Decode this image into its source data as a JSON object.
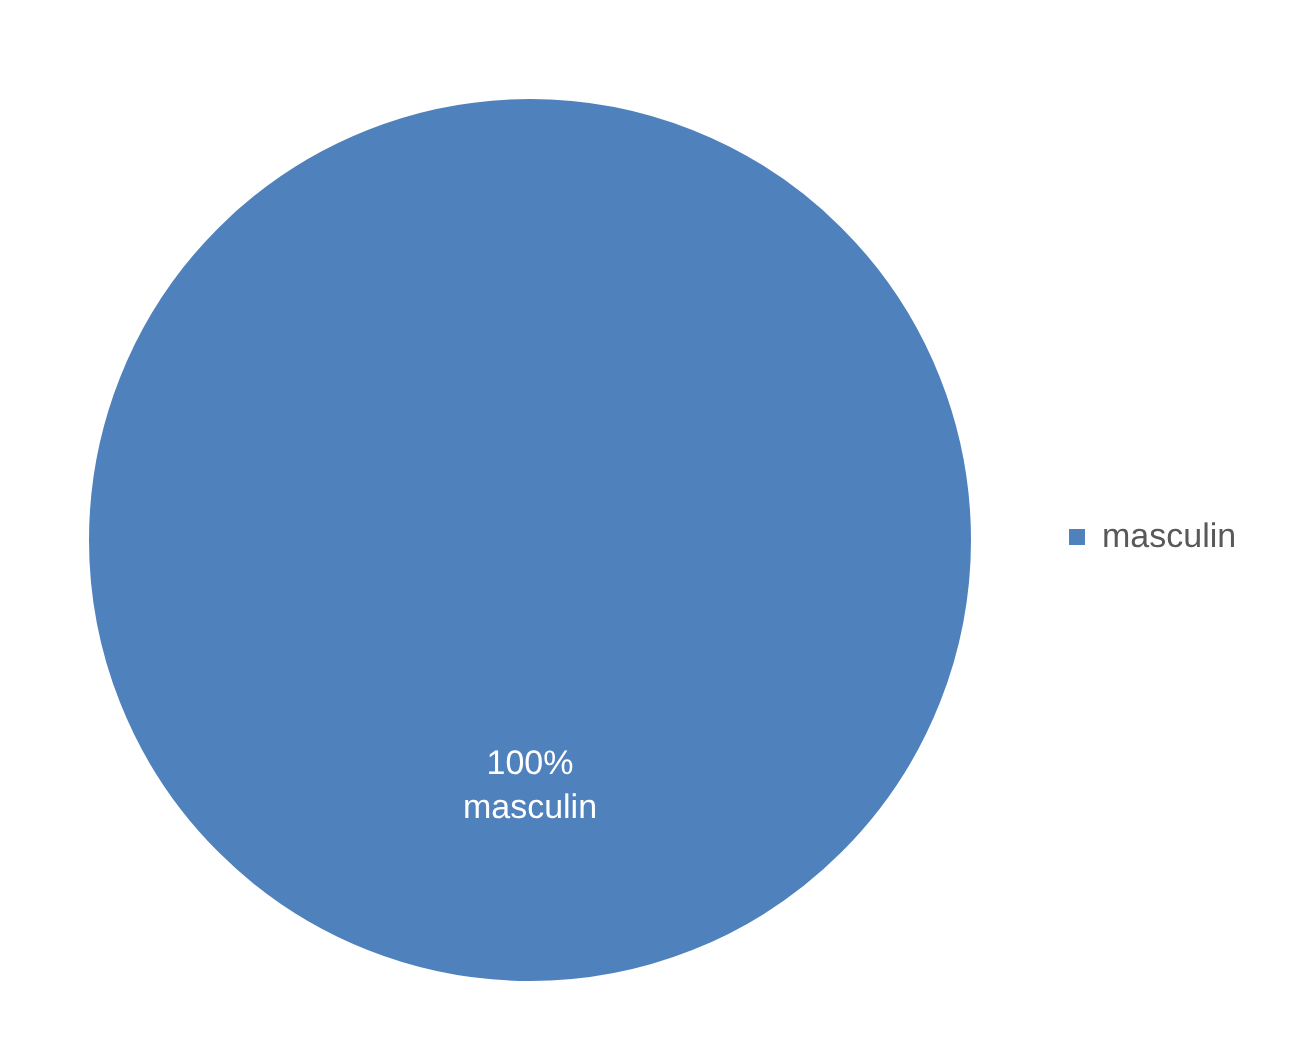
{
  "chart_data": {
    "type": "pie",
    "categories": [
      "masculin"
    ],
    "values": [
      100
    ],
    "colors": [
      "#4f81bd"
    ],
    "value_labels": [
      "100%"
    ],
    "legend": "right"
  }
}
